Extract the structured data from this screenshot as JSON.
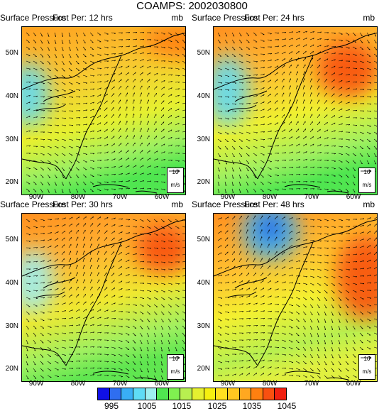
{
  "title": "COAMPS: 2002030800",
  "panels": [
    {
      "field": "Surface Pressure",
      "fcst": "Fcst Per: 12 hrs",
      "units": "mb",
      "ref_value": "10",
      "ref_units": "m/s"
    },
    {
      "field": "Surface Pressure",
      "fcst": "Fcst Per: 24 hrs",
      "units": "mb",
      "ref_value": "10",
      "ref_units": "m/s"
    },
    {
      "field": "Surface Pressure",
      "fcst": "Fcst Per: 30 hrs",
      "units": "mb",
      "ref_value": "10",
      "ref_units": "m/s"
    },
    {
      "field": "Surface Pressure",
      "fcst": "Fcst Per: 48 hrs",
      "units": "mb",
      "ref_value": "10",
      "ref_units": "m/s"
    }
  ],
  "lat_labels": [
    "50N",
    "40N",
    "30N",
    "20N"
  ],
  "lon_labels": [
    "90W",
    "80W",
    "70W",
    "60W"
  ],
  "colorbar": {
    "labels": [
      "995",
      "1005",
      "1015",
      "1025",
      "1035",
      "1045"
    ],
    "colors": [
      "#1010e6",
      "#2f6ef0",
      "#39aef5",
      "#5fdcf5",
      "#9ff0f0",
      "#50e650",
      "#80f050",
      "#b8f050",
      "#e6f030",
      "#f6f010",
      "#ffe020",
      "#ffc820",
      "#ffa820",
      "#ff8010",
      "#f85010",
      "#f02010"
    ]
  }
}
